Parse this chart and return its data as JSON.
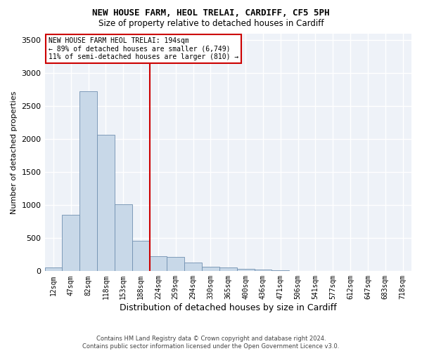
{
  "title1": "NEW HOUSE FARM, HEOL TRELAI, CARDIFF, CF5 5PH",
  "title2": "Size of property relative to detached houses in Cardiff",
  "xlabel": "Distribution of detached houses by size in Cardiff",
  "ylabel": "Number of detached properties",
  "bar_color": "#c8d8e8",
  "bar_edge_color": "#7090b0",
  "background_color": "#eef2f8",
  "grid_color": "#ffffff",
  "vline_color": "#cc0000",
  "annotation_box_color": "#cc0000",
  "annotation_lines": [
    "NEW HOUSE FARM HEOL TRELAI: 194sqm",
    "← 89% of detached houses are smaller (6,749)",
    "11% of semi-detached houses are larger (810) →"
  ],
  "categories": [
    "12sqm",
    "47sqm",
    "82sqm",
    "118sqm",
    "153sqm",
    "188sqm",
    "224sqm",
    "259sqm",
    "294sqm",
    "330sqm",
    "365sqm",
    "400sqm",
    "436sqm",
    "471sqm",
    "506sqm",
    "541sqm",
    "577sqm",
    "612sqm",
    "647sqm",
    "683sqm",
    "718sqm"
  ],
  "values": [
    60,
    850,
    2720,
    2060,
    1010,
    460,
    225,
    215,
    130,
    70,
    55,
    35,
    20,
    10,
    0,
    0,
    0,
    0,
    0,
    0,
    0
  ],
  "ylim": [
    0,
    3600
  ],
  "yticks": [
    0,
    500,
    1000,
    1500,
    2000,
    2500,
    3000,
    3500
  ],
  "footer1": "Contains HM Land Registry data © Crown copyright and database right 2024.",
  "footer2": "Contains public sector information licensed under the Open Government Licence v3.0."
}
